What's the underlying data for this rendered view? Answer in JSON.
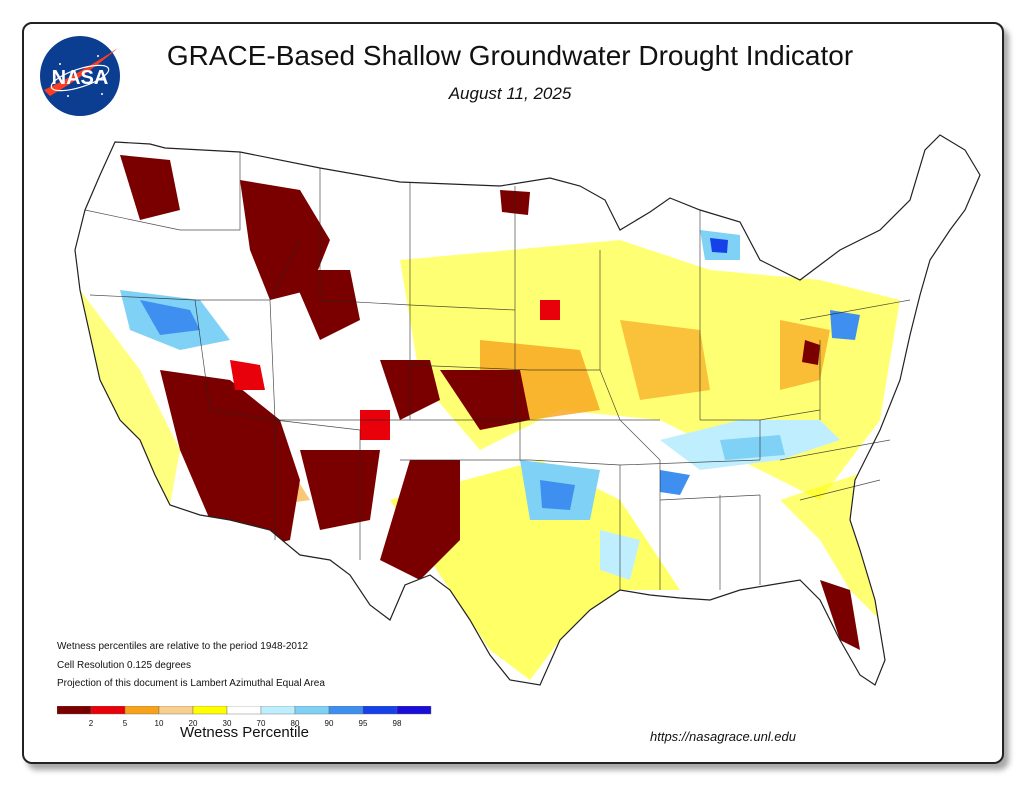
{
  "header": {
    "title": "GRACE-Based Shallow Groundwater Drought Indicator",
    "date": "August 11, 2025",
    "logo_text": "NASA"
  },
  "notes": [
    "Wetness percentiles are relative to the period 1948-2012",
    "Cell Resolution 0.125 degrees",
    "Projection of this document is Lambert Azimuthal Equal Area"
  ],
  "legend": {
    "title": "Wetness Percentile",
    "ticks": [
      "2",
      "5",
      "10",
      "20",
      "30",
      "70",
      "80",
      "90",
      "95",
      "98"
    ],
    "colors": [
      "#7a0000",
      "#e8000b",
      "#f7a21b",
      "#f7cf8e",
      "#ffff00",
      "#ffffff",
      "#bfefff",
      "#7fd2f5",
      "#3f8ff0",
      "#1640e8",
      "#1a0dd8"
    ]
  },
  "footer": {
    "url": "https://nasagrace.unl.edu"
  },
  "map": {
    "region": "Contiguous United States",
    "palette": {
      "extreme_dry": "#7a0000",
      "severe_dry": "#e8000b",
      "moderate_dry": "#f7a21b",
      "light_dry": "#f7cf8e",
      "abnormal_dry": "#ffff00",
      "normal": "#ffffff",
      "wet1": "#bfefff",
      "wet2": "#7fd2f5",
      "wet3": "#3f8ff0",
      "wet4": "#1640e8"
    }
  }
}
